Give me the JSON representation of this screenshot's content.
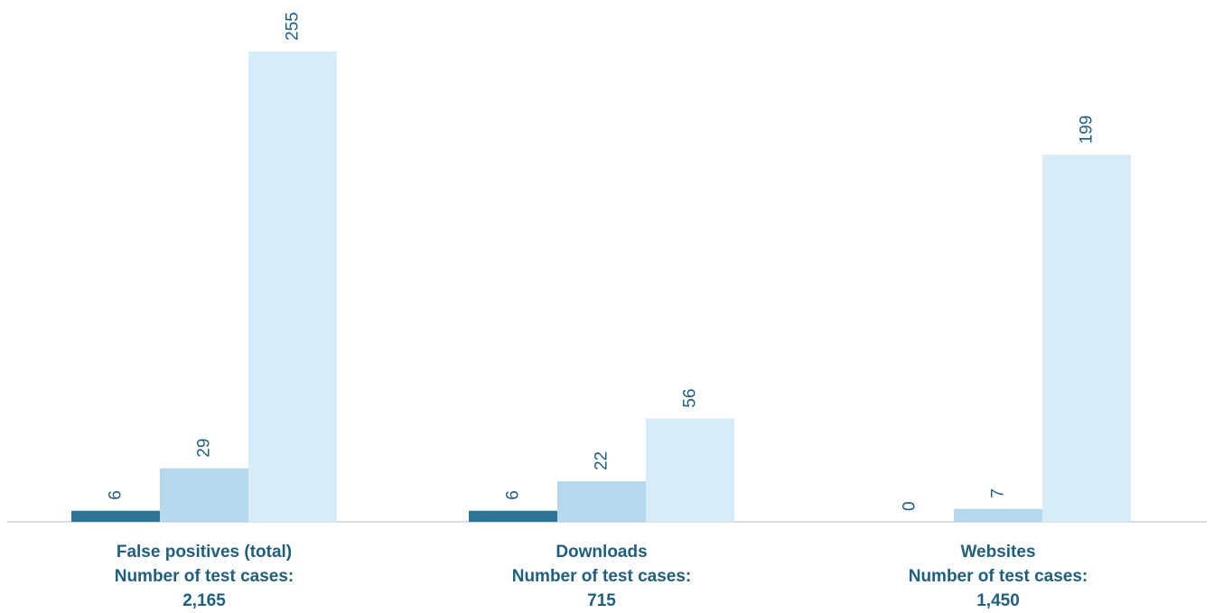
{
  "chart_data": {
    "type": "bar",
    "categories": [
      {
        "lines": [
          "False positives (total)",
          "Number of test cases:",
          "2,165"
        ]
      },
      {
        "lines": [
          "Downloads",
          "Number of test cases:",
          "715"
        ]
      },
      {
        "lines": [
          "Websites",
          "Number of test cases:",
          "1,450"
        ]
      }
    ],
    "series": [
      {
        "values": [
          6,
          6,
          0
        ],
        "labels": [
          "6",
          "6",
          "0"
        ],
        "color": "#2e7495"
      },
      {
        "values": [
          29,
          22,
          7
        ],
        "labels": [
          "29",
          "22",
          "7"
        ],
        "color": "#b5d9ec"
      },
      {
        "values": [
          255,
          56,
          199
        ],
        "labels": [
          "255",
          "56",
          "199"
        ],
        "color": "#d8ebf9"
      }
    ],
    "ylim": [
      0,
      255
    ],
    "grid": false,
    "legend": "none",
    "colors": {
      "label_text": "#1f5f7e",
      "baseline": "#d9dde0"
    }
  }
}
